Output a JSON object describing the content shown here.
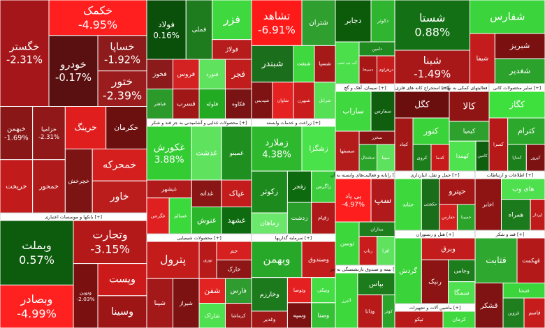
{
  "sectors": [
    {
      "tiles": [
        {
          "name": "خگستر",
          "change": "-2.31%",
          "color": "#a4161a"
        },
        {
          "name": "خکمک",
          "change": "-4.95%",
          "color": "#ff1f1f"
        },
        {
          "name": "خودرو",
          "change": "-0.17%",
          "color": "#5a1010"
        },
        {
          "name": "خساپا",
          "change": "-1.92%",
          "color": "#8e1b1b"
        },
        {
          "name": "ختور",
          "change": "-2.39%",
          "color": "#9b1c1c"
        },
        {
          "name": "خبهمن",
          "change": "-1.69%",
          "color": "#8a1717"
        },
        {
          "name": "خزامیا",
          "change": "-2.31%",
          "color": "#901818"
        },
        {
          "name": "خریخت",
          "color": "#c21b1b"
        },
        {
          "name": "خمحور",
          "color": "#b01a1a"
        },
        {
          "name": "خرینگ",
          "color": "#e01e1e"
        },
        {
          "name": "خکرمان",
          "color": "#6b0f0f"
        },
        {
          "name": "خچرخش",
          "color": "#7d1414"
        },
        {
          "name": "خمحرکه",
          "color": "#d51f1f"
        },
        {
          "name": "خاور",
          "color": "#bb1c1c"
        }
      ]
    },
    {
      "label": "بانکها و موسسات اعتباری [+]",
      "tiles": [
        {
          "name": "وبملت",
          "change": "0.57%",
          "color": "#0d5c0d"
        },
        {
          "name": "وبصادر",
          "change": "-4.99%",
          "color": "#ff2020"
        },
        {
          "name": "وتجارت",
          "change": "-3.15%",
          "color": "#b31919"
        },
        {
          "name": "ونوین",
          "change": "-2.03%",
          "color": "#7a1010"
        },
        {
          "name": "وپست",
          "color": "#cc1a1a"
        },
        {
          "name": "وسینا",
          "color": "#9e1515"
        }
      ]
    },
    {
      "tiles": [
        {
          "name": "فولاد",
          "change": "0.16%",
          "color": "#0a4f0a"
        },
        {
          "name": "فملی",
          "color": "#1e7b1e"
        },
        {
          "name": "فزر",
          "color": "#3fd93f"
        },
        {
          "name": "فولاژ",
          "color": "#b71c1c"
        },
        {
          "name": "فخوز",
          "color": "#8b1a1a"
        },
        {
          "name": "فروس",
          "color": "#d42222"
        },
        {
          "name": "فباهنر",
          "color": "#2b9a2b"
        },
        {
          "name": "فسرب",
          "color": "#a01717"
        },
        {
          "name": "فنورد",
          "color": "#5fe35f"
        },
        {
          "name": "فجر",
          "color": "#c21d1d"
        },
        {
          "name": "فلوله",
          "color": "#22aa22"
        },
        {
          "name": "فکاوه",
          "color": "#7a1414"
        }
      ]
    },
    {
      "label": "محصولات غذایی و آشامیدنی به جز قند و شکر [+]",
      "tiles": [
        {
          "name": "غکورش",
          "change": "3.88%",
          "color": "#33cc33"
        },
        {
          "name": "غدشت",
          "color": "#5fe35f"
        },
        {
          "name": "غمینو",
          "color": "#1f8f1f"
        },
        {
          "name": "غبشهر",
          "color": "#b01a1a"
        },
        {
          "name": "غگرجی",
          "color": "#e02020"
        },
        {
          "name": "غسالم",
          "color": "#3cd93c"
        },
        {
          "name": "غدانه",
          "color": "#8a1515"
        },
        {
          "name": "غنوش",
          "color": "#2bb52b"
        },
        {
          "name": "غپاک",
          "color": "#c41c1c"
        },
        {
          "name": "غشهد",
          "color": "#0f6b0f"
        }
      ]
    },
    {
      "label": "محصولات شیمیایی [+]",
      "tiles": [
        {
          "name": "پترول",
          "color": "#c41b1b"
        },
        {
          "name": "شپنا",
          "color": "#a31818"
        },
        {
          "name": "شیراز",
          "color": "#7d1212"
        },
        {
          "name": "نوری",
          "color": "#b81a1a"
        },
        {
          "name": "جم",
          "color": "#d61f1f"
        },
        {
          "name": "خارک",
          "color": "#8e1616"
        },
        {
          "name": "شفن",
          "color": "#e32222"
        },
        {
          "name": "شاراک",
          "color": "#4ee04e"
        },
        {
          "name": "فارس",
          "color": "#2e9c2e"
        },
        {
          "name": "کرماشا",
          "color": "#9c1717"
        }
      ]
    },
    {
      "tiles": [
        {
          "name": "تشاهد",
          "change": "-6.91%",
          "color": "#ff1a1a"
        },
        {
          "name": "شتران",
          "color": "#2fa02f"
        },
        {
          "name": "شبندر",
          "color": "#1b6e1b"
        },
        {
          "name": "شپدیس",
          "color": "#7f1313"
        },
        {
          "name": "شاوان",
          "color": "#e52121"
        },
        {
          "name": "شنفت",
          "color": "#3fd83f"
        },
        {
          "name": "شسپا",
          "color": "#a51919"
        },
        {
          "name": "شبهرن",
          "color": "#c91d1d"
        },
        {
          "name": "شرانل",
          "color": "#55e055"
        }
      ]
    },
    {
      "label": "زراعت و خدمات وابسته [+]",
      "tiles": [
        {
          "name": "زملارد",
          "change": "4.38%",
          "color": "#2db82d"
        },
        {
          "name": "زشگزا",
          "color": "#4ae24a"
        },
        {
          "name": "زکوثر",
          "color": "#1c8a1c"
        },
        {
          "name": "زماهان",
          "color": "#6be86b"
        },
        {
          "name": "زفجر",
          "color": "#0e6a0e"
        },
        {
          "name": "زاگرس",
          "color": "#3ccd3c"
        },
        {
          "name": "زدشت",
          "color": "#2a9e2a"
        },
        {
          "name": "زقیام",
          "color": "#b01919"
        }
      ]
    },
    {
      "label": "سرمایه گذاریها [+]",
      "tiles": [
        {
          "name": "وبهمن",
          "color": "#28a828"
        },
        {
          "name": "وصندوق",
          "color": "#c21c1c"
        },
        {
          "name": "وخارزم",
          "color": "#1c7a1c"
        },
        {
          "name": "وغدیر",
          "color": "#a11818"
        },
        {
          "name": "وتوصا",
          "color": "#e42020"
        },
        {
          "name": "ونیکی",
          "color": "#44dd44"
        },
        {
          "name": "وسپه",
          "color": "#7b1111"
        },
        {
          "name": "وصنا",
          "color": "#36c036"
        }
      ]
    },
    {
      "tiles": [
        {
          "name": "دجابر",
          "color": "#0b5b0b"
        },
        {
          "name": "دکوثر",
          "color": "#2fb52f"
        },
        {
          "name": "کی بی سی",
          "color": "#4be04b"
        },
        {
          "name": "دامین",
          "color": "#1f8a1f"
        },
        {
          "name": "دسبحا",
          "color": "#a81616"
        },
        {
          "name": "دزهراوی",
          "color": "#c61c1c"
        }
      ]
    },
    {
      "label": "سیمان، آهک و گچ [+]",
      "tiles": [
        {
          "name": "ساراب",
          "color": "#3fd83f"
        },
        {
          "name": "سفارس",
          "color": "#0f5f0f"
        },
        {
          "name": "سصفها",
          "color": "#b41b1b"
        },
        {
          "name": "سخزر",
          "color": "#8a1414"
        },
        {
          "name": "سشمال",
          "color": "#2aa52a"
        },
        {
          "name": "سیتا",
          "color": "#5ee25e"
        }
      ]
    },
    {
      "label": "استخراج کانه های فلزی [+]",
      "tiles": [
        {
          "name": "کگل",
          "color": "#6b0e0e"
        },
        {
          "name": "کچاد",
          "color": "#a41717"
        },
        {
          "name": "کنور",
          "color": "#3ad33a"
        },
        {
          "name": "کروی",
          "color": "#1b7e1b"
        },
        {
          "name": "کدما",
          "color": "#c71b1b"
        }
      ]
    },
    {
      "label": "فعالیتهای کمکی به نهاده [+]",
      "tiles": [
        {
          "name": "کالا",
          "color": "#8f1515"
        },
        {
          "name": "کیمیا",
          "color": "#2ea02e"
        },
        {
          "name": "کهمدا",
          "color": "#4ee24e"
        },
        {
          "name": "کامین",
          "color": "#0f5f0f"
        }
      ]
    },
    {
      "label": "سایر محصولات کانی [+]",
      "tiles": [
        {
          "name": "کگاز",
          "color": "#3ee03e"
        },
        {
          "name": "کسرا",
          "color": "#b71818"
        },
        {
          "name": "کترام",
          "color": "#2ca82c"
        },
        {
          "name": "کساپا",
          "color": "#1b801b"
        },
        {
          "name": "کپرور",
          "color": "#7d1212"
        }
      ]
    },
    {
      "tiles": [
        {
          "name": "شستا",
          "change": "0.88%",
          "color": "#147014"
        },
        {
          "name": "شبنا",
          "change": "-1.49%",
          "color": "#a81818"
        },
        {
          "name": "شفارس",
          "color": "#3cd43c"
        },
        {
          "name": "شیفا",
          "color": "#c41c1c"
        },
        {
          "name": "شبریز",
          "color": "#7b1010"
        },
        {
          "name": "شغدیر",
          "color": "#2ba22b"
        }
      ]
    },
    {
      "label": "رایانه و فعالیت‌های وابسته به آن [+]",
      "tiles": [
        {
          "name": "پی پاد",
          "change": "-4.97%",
          "color": "#ff1e1e"
        },
        {
          "name": "سپ",
          "color": "#b11a1a"
        },
        {
          "name": "توسن",
          "color": "#3bd73b"
        },
        {
          "name": "مداران",
          "color": "#1e7e1e"
        },
        {
          "name": "رتاپ",
          "color": "#c91c1c"
        },
        {
          "name": "افرا",
          "color": "#5fe35f"
        }
      ]
    },
    {
      "label": "حمل و نقل، انبارداری [+]",
      "tiles": [
        {
          "name": "حتاید",
          "color": "#3cd83c"
        },
        {
          "name": "حکشتی",
          "color": "#1a6e1a"
        },
        {
          "name": "حپترو",
          "color": "#a51616"
        },
        {
          "name": "حفارس",
          "color": "#d41f1f"
        },
        {
          "name": "حسینا",
          "color": "#2aa52a"
        }
      ]
    },
    {
      "label": "اطلاعات و ارتباطات [+]",
      "tiles": [
        {
          "name": "اخابر",
          "color": "#8e1414"
        },
        {
          "name": "های وب",
          "color": "#4fe04f"
        },
        {
          "name": "همراه",
          "color": "#1b7a1b"
        },
        {
          "name": "اپرداز",
          "color": "#c01b1b"
        }
      ]
    },
    {
      "label": "بیمه و صندوق بازنشستگی به جز [+]",
      "tiles": [
        {
          "name": "البرز",
          "color": "#3cd83c"
        },
        {
          "name": "بپاس",
          "color": "#1c7c1c"
        },
        {
          "name": "ودانا",
          "color": "#b81a1a"
        },
        {
          "name": "کوثر",
          "color": "#2aa42a"
        }
      ]
    },
    {
      "label": "هتل و رستوران [+]",
      "tiles": [
        {
          "name": "گردش",
          "color": "#3ad33a"
        },
        {
          "name": "وبرق",
          "color": "#c31c1c"
        },
        {
          "name": "رنیک",
          "color": "#8c1414"
        },
        {
          "name": "وجامی",
          "color": "#1d7d1d"
        },
        {
          "name": "سمگا",
          "color": "#4fe04f"
        }
      ]
    },
    {
      "label": "ماشین آلات و تجهیزات [+]",
      "tiles": [
        {
          "name": "تپکو",
          "color": "#b81919"
        },
        {
          "name": "کرمان",
          "color": "#3fd83f"
        }
      ]
    },
    {
      "label": "قند و شکر [+]",
      "tiles": [
        {
          "name": "قثابت",
          "color": "#2fa82f"
        },
        {
          "name": "قهکمت",
          "color": "#b31919"
        },
        {
          "name": "قشکر",
          "color": "#7f1212"
        },
        {
          "name": "قنیشا",
          "color": "#3bd63b"
        },
        {
          "name": "قزوین",
          "color": "#1f7f1f"
        },
        {
          "name": "قاسم",
          "color": "#c71c1c"
        }
      ]
    }
  ]
}
